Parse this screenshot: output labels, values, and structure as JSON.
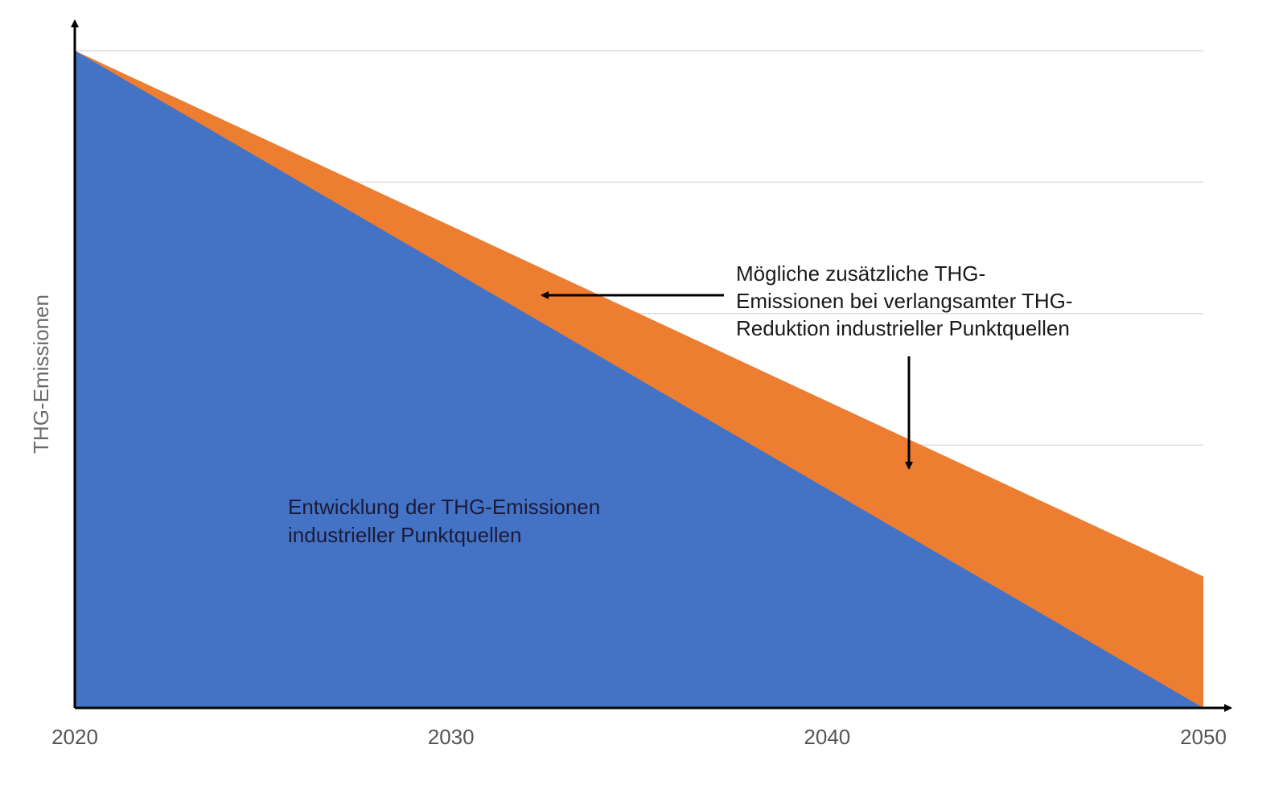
{
  "chart_data": {
    "type": "area",
    "ylabel": "THG-Emissionen",
    "xlabel": "",
    "x": [
      2020,
      2050
    ],
    "xticks": [
      "2020",
      "2030",
      "2040",
      "2050"
    ],
    "xlim": [
      2020,
      2050
    ],
    "ylim": [
      0,
      100
    ],
    "grid": true,
    "gridlines_y": [
      20,
      40,
      60,
      80,
      100
    ],
    "series": [
      {
        "values": [
          100,
          0
        ],
        "color": "#4472c4"
      },
      {
        "values": [
          100,
          20
        ],
        "color": "#ed7d31"
      }
    ],
    "annotations": {
      "orange_lines": [
        "Mögliche zusätzliche THG-",
        "Emissionen bei verlangsamter THG-",
        "Reduktion industrieller Punktquellen"
      ],
      "blue_lines": [
        "Entwicklung der THG-Emissionen",
        "industrieller Punktquellen"
      ]
    }
  }
}
